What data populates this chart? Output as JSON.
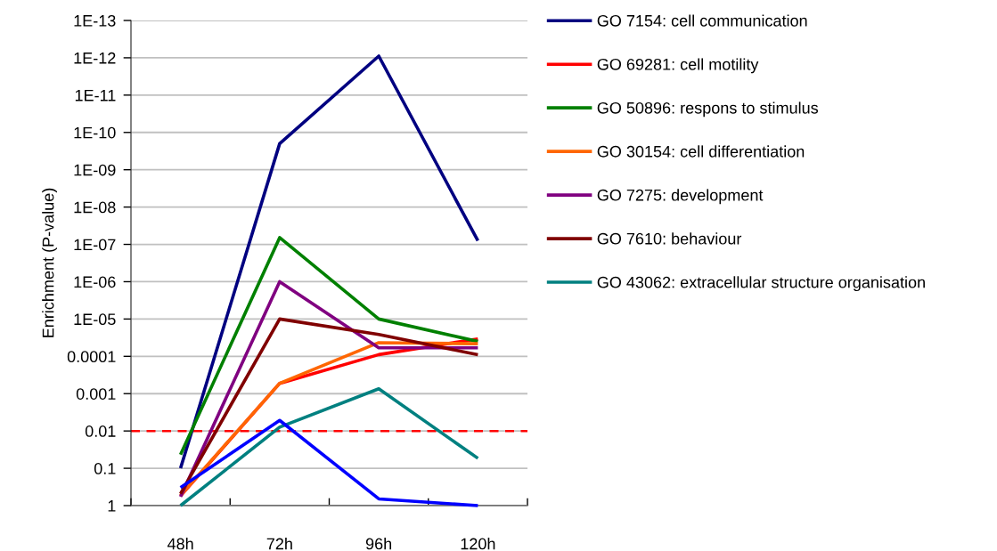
{
  "chart_data": {
    "type": "line",
    "ylabel": "Enrichment (P-value)",
    "categories": [
      "48h",
      "72h",
      "96h",
      "120h"
    ],
    "series": [
      {
        "name": "GO 7154: cell communication",
        "color": "#000080",
        "values": [
          0.1,
          2e-10,
          9e-13,
          8e-08
        ]
      },
      {
        "name": "GO 69281: cell motility",
        "color": "#ff0000",
        "values": [
          0.55,
          0.00053,
          9e-05,
          3.4e-05
        ]
      },
      {
        "name": "GO 50896: respons to stimulus",
        "color": "#008000",
        "values": [
          0.043,
          6.6e-08,
          1e-05,
          4e-05
        ]
      },
      {
        "name": "GO 30154: cell differentiation",
        "color": "#ff6600",
        "values": [
          0.53,
          0.00053,
          4.3e-05,
          4.6e-05
        ]
      },
      {
        "name": "GO 7275: development",
        "color": "#800080",
        "values": [
          0.58,
          1e-06,
          5.9e-05,
          5.9e-05
        ]
      },
      {
        "name": "GO 7610: behaviour",
        "color": "#800000",
        "values": [
          0.48,
          1e-05,
          2.6e-05,
          9.1e-05
        ]
      },
      {
        "name": "GO 43062: extracellular structure organisation",
        "color": "#008080",
        "values": [
          1,
          0.0079,
          0.00074,
          0.054
        ]
      },
      {
        "color": "#0000ff",
        "values": [
          0.33,
          0.0052,
          0.66,
          1
        ]
      }
    ],
    "log": "y",
    "ylim": [
      1,
      1e-13
    ],
    "yticks": [
      {
        "value": 1e-13,
        "label": "1E-13"
      },
      {
        "value": 1e-12,
        "label": "1E-12"
      },
      {
        "value": 1e-11,
        "label": "1E-11"
      },
      {
        "value": 1e-10,
        "label": "1E-10"
      },
      {
        "value": 1e-09,
        "label": "1E-09"
      },
      {
        "value": 1e-08,
        "label": "1E-08"
      },
      {
        "value": 1e-07,
        "label": "1E-07"
      },
      {
        "value": 1e-06,
        "label": "1E-06"
      },
      {
        "value": 1e-05,
        "label": "1E-05"
      },
      0.0001,
      0.001,
      0.01,
      0.1,
      1
    ],
    "grid": "y",
    "legend": "right",
    "ref_lines": [
      {
        "axis": "y",
        "value": 0.01,
        "color": "#ff0000",
        "line_style": "dashed"
      }
    ]
  }
}
